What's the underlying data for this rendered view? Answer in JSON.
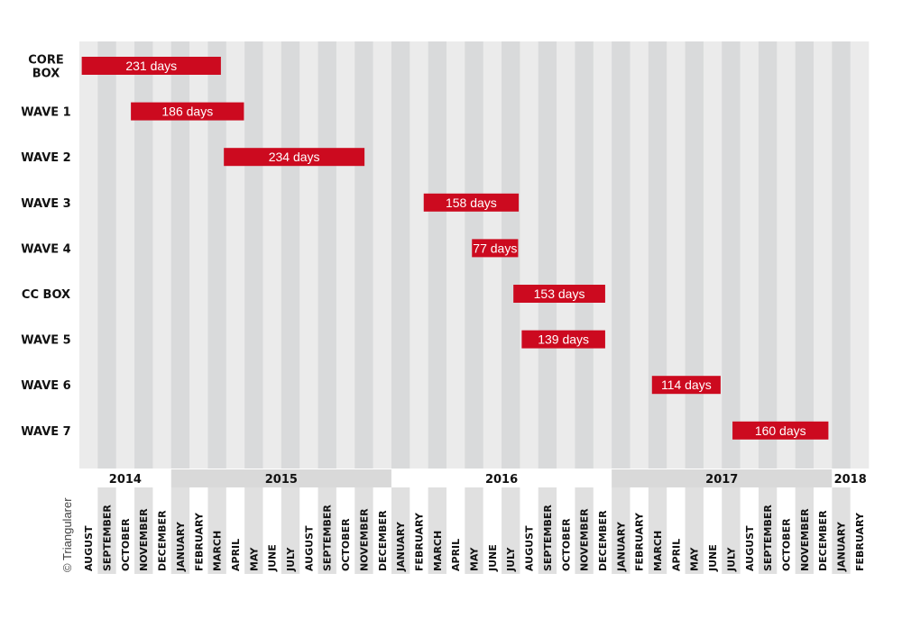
{
  "chart_data": {
    "type": "gantt",
    "credit": "© Triangularer",
    "value_suffix": " days",
    "timeline_start": "2014-08",
    "timeline_end": "2018-02",
    "years": [
      "2014",
      "2015",
      "2016",
      "2017",
      "2018"
    ],
    "months": [
      "AUGUST",
      "SEPTEMBER",
      "OCTOBER",
      "NOVEMBER",
      "DECEMBER",
      "JANUARY",
      "FEBRUARY",
      "MARCH",
      "APRIL",
      "MAY",
      "JUNE",
      "JULY",
      "AUGUST",
      "SEPTEMBER",
      "OCTOBER",
      "NOVEMBER",
      "DECEMBER",
      "JANUARY",
      "FEBRUARY",
      "MARCH",
      "APRIL",
      "MAY",
      "JUNE",
      "JULY",
      "AUGUST",
      "SEPTEMBER",
      "OCTOBER",
      "NOVEMBER",
      "DECEMBER",
      "JANUARY",
      "FEBRUARY",
      "MARCH",
      "APRIL",
      "MAY",
      "JUNE",
      "JULY",
      "AUGUST",
      "SEPTEMBER",
      "OCTOBER",
      "NOVEMBER",
      "DECEMBER",
      "JANUARY",
      "FEBRUARY"
    ],
    "rows": [
      {
        "label": [
          "CORE",
          "BOX"
        ],
        "start": "2014-08-05",
        "end": "2015-03-23",
        "value": 231
      },
      {
        "label": [
          "WAVE 1"
        ],
        "start": "2014-10-26",
        "end": "2015-04-30",
        "value": 186
      },
      {
        "label": [
          "WAVE 2"
        ],
        "start": "2015-03-28",
        "end": "2015-11-17",
        "value": 234
      },
      {
        "label": [
          "WAVE 3"
        ],
        "start": "2016-02-23",
        "end": "2016-07-30",
        "value": 158
      },
      {
        "label": [
          "WAVE 4"
        ],
        "start": "2016-05-13",
        "end": "2016-07-29",
        "value": 77
      },
      {
        "label": [
          "CC BOX"
        ],
        "start": "2016-07-21",
        "end": "2016-12-21",
        "value": 153
      },
      {
        "label": [
          "WAVE 5"
        ],
        "start": "2016-08-04",
        "end": "2016-12-21",
        "value": 139
      },
      {
        "label": [
          "WAVE 6"
        ],
        "start": "2017-03-07",
        "end": "2017-06-29",
        "value": 114
      },
      {
        "label": [
          "WAVE 7"
        ],
        "start": "2017-07-19",
        "end": "2017-12-26",
        "value": 160
      }
    ],
    "colors": {
      "bar": "#cc0a1f",
      "band_light": "#ebebeb",
      "band_dark": "#d9dadb",
      "year_band": "#d9d9d9",
      "month_stripe": "#e0e0e0"
    }
  }
}
